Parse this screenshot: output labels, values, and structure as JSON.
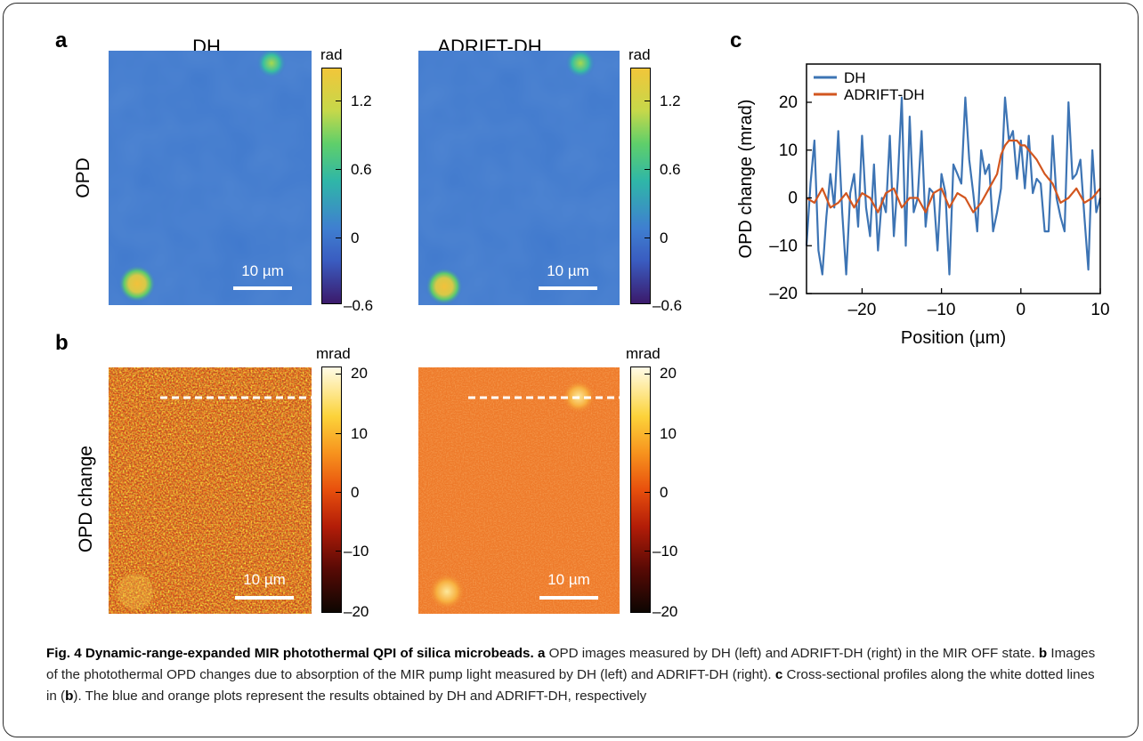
{
  "panels": {
    "a": {
      "letter": "a",
      "row_label": "OPD",
      "left_title": "DH",
      "right_title": "ADRIFT-DH",
      "unit": "rad",
      "ticks": [
        "1.2",
        "0.6",
        "0",
        "–0.6"
      ],
      "scale_bar_label": "10 µm",
      "colormap": [
        "#3b1a6b",
        "#3a5cc0",
        "#3f7fd0",
        "#2fb6a8",
        "#5fcf6a",
        "#c6d84a",
        "#f1c63a"
      ]
    },
    "b": {
      "letter": "b",
      "row_label": "OPD change",
      "unit": "mrad",
      "ticks": [
        "20",
        "10",
        "0",
        "–10",
        "–20"
      ],
      "scale_bar_label": "10 µm",
      "colormap": [
        "#0d0602",
        "#5a0a05",
        "#b31d08",
        "#e8500d",
        "#f7931e",
        "#fcd33a",
        "#fffbe6"
      ]
    },
    "c": {
      "letter": "c",
      "chart_data": {
        "type": "line",
        "title": "",
        "xlabel": "Position (µm)",
        "ylabel": "OPD change (mrad)",
        "xlim": [
          -27,
          10
        ],
        "ylim": [
          -20,
          28
        ],
        "xticks": [
          -20,
          -10,
          0,
          10
        ],
        "xtick_labels": [
          "–20",
          "–10",
          "0",
          "10"
        ],
        "yticks": [
          -20,
          -10,
          0,
          10,
          20
        ],
        "ytick_labels": [
          "–20",
          "–10",
          "0",
          "10",
          "20"
        ],
        "legend": "top-left",
        "grid": false,
        "series": [
          {
            "name": "DH",
            "color": "#3d74b4",
            "x": [
              -27,
              -26.5,
              -26,
              -25.5,
              -25,
              -24.5,
              -24,
              -23.5,
              -23,
              -22.5,
              -22,
              -21.5,
              -21,
              -20.5,
              -20,
              -19.5,
              -19,
              -18.5,
              -18,
              -17.5,
              -17,
              -16.5,
              -16,
              -15.5,
              -15,
              -14.5,
              -14,
              -13.5,
              -13,
              -12.5,
              -12,
              -11.5,
              -11,
              -10.5,
              -10,
              -9.5,
              -9,
              -8.5,
              -8,
              -7.5,
              -7,
              -6.5,
              -6,
              -5.5,
              -5,
              -4.5,
              -4,
              -3.5,
              -3,
              -2.5,
              -2,
              -1.5,
              -1,
              -0.5,
              0,
              0.5,
              1,
              1.5,
              2,
              2.5,
              3,
              3.5,
              4,
              4.5,
              5,
              5.5,
              6,
              6.5,
              7,
              7.5,
              8,
              8.5,
              9,
              9.5,
              10
            ],
            "y": [
              -10,
              3,
              12,
              -11,
              -16,
              -4,
              5,
              -2,
              14,
              -3,
              -16,
              1,
              5,
              -6,
              13,
              -2,
              -8,
              7,
              -11,
              0,
              -3,
              13,
              -8,
              4,
              21,
              -10,
              17,
              -3,
              0,
              14,
              -6,
              2,
              1,
              -11,
              5,
              1,
              -16,
              7,
              5,
              3,
              21,
              8,
              1,
              -7,
              10,
              5,
              7,
              -7,
              -3,
              2,
              21,
              12,
              14,
              4,
              12,
              2,
              13,
              1,
              4,
              3,
              -7,
              -7,
              13,
              0,
              -4,
              -7,
              20,
              4,
              5,
              8,
              -4,
              -15,
              10,
              -3,
              0
            ]
          },
          {
            "name": "ADRIFT-DH",
            "color": "#d2561f",
            "x": [
              -27,
              -26,
              -25,
              -24,
              -23,
              -22,
              -21,
              -20,
              -19,
              -18,
              -17,
              -16,
              -15,
              -14,
              -13,
              -12,
              -11,
              -10,
              -9,
              -8,
              -7,
              -6,
              -5,
              -4,
              -3,
              -2.5,
              -2,
              -1.5,
              -1,
              -0.5,
              0,
              0.5,
              1,
              1.5,
              2,
              3,
              4,
              5,
              6,
              7,
              8,
              9,
              10
            ],
            "y": [
              0,
              -1,
              2,
              -2,
              -1,
              1,
              -2,
              1,
              0,
              -3,
              1,
              2,
              -2,
              0,
              0,
              -3,
              1,
              2,
              -2,
              1,
              0,
              -3,
              -1,
              2,
              5,
              9,
              11,
              12,
              12,
              12,
              11,
              11,
              10,
              9,
              8,
              5,
              3,
              -1,
              0,
              2,
              -1,
              0,
              2
            ]
          }
        ]
      }
    }
  },
  "caption": {
    "fig_label": "Fig. 4 Dynamic-range-expanded MIR photothermal QPI of silica microbeads.",
    "a_letter": "a",
    "a_text": " OPD images measured by DH (left) and ADRIFT-DH (right) in the MIR OFF state. ",
    "b_letter": "b",
    "b_text": " Images of the photothermal OPD changes due to absorption of the MIR pump light measured by DH (left) and ADRIFT-DH (right). ",
    "c_letter": "c",
    "c_text_1": " Cross-sectional profiles along the white dotted lines in (",
    "c_ref": "b",
    "c_text_2": "). The blue and orange plots represent the results obtained by DH and ADRIFT-DH, respectively"
  }
}
